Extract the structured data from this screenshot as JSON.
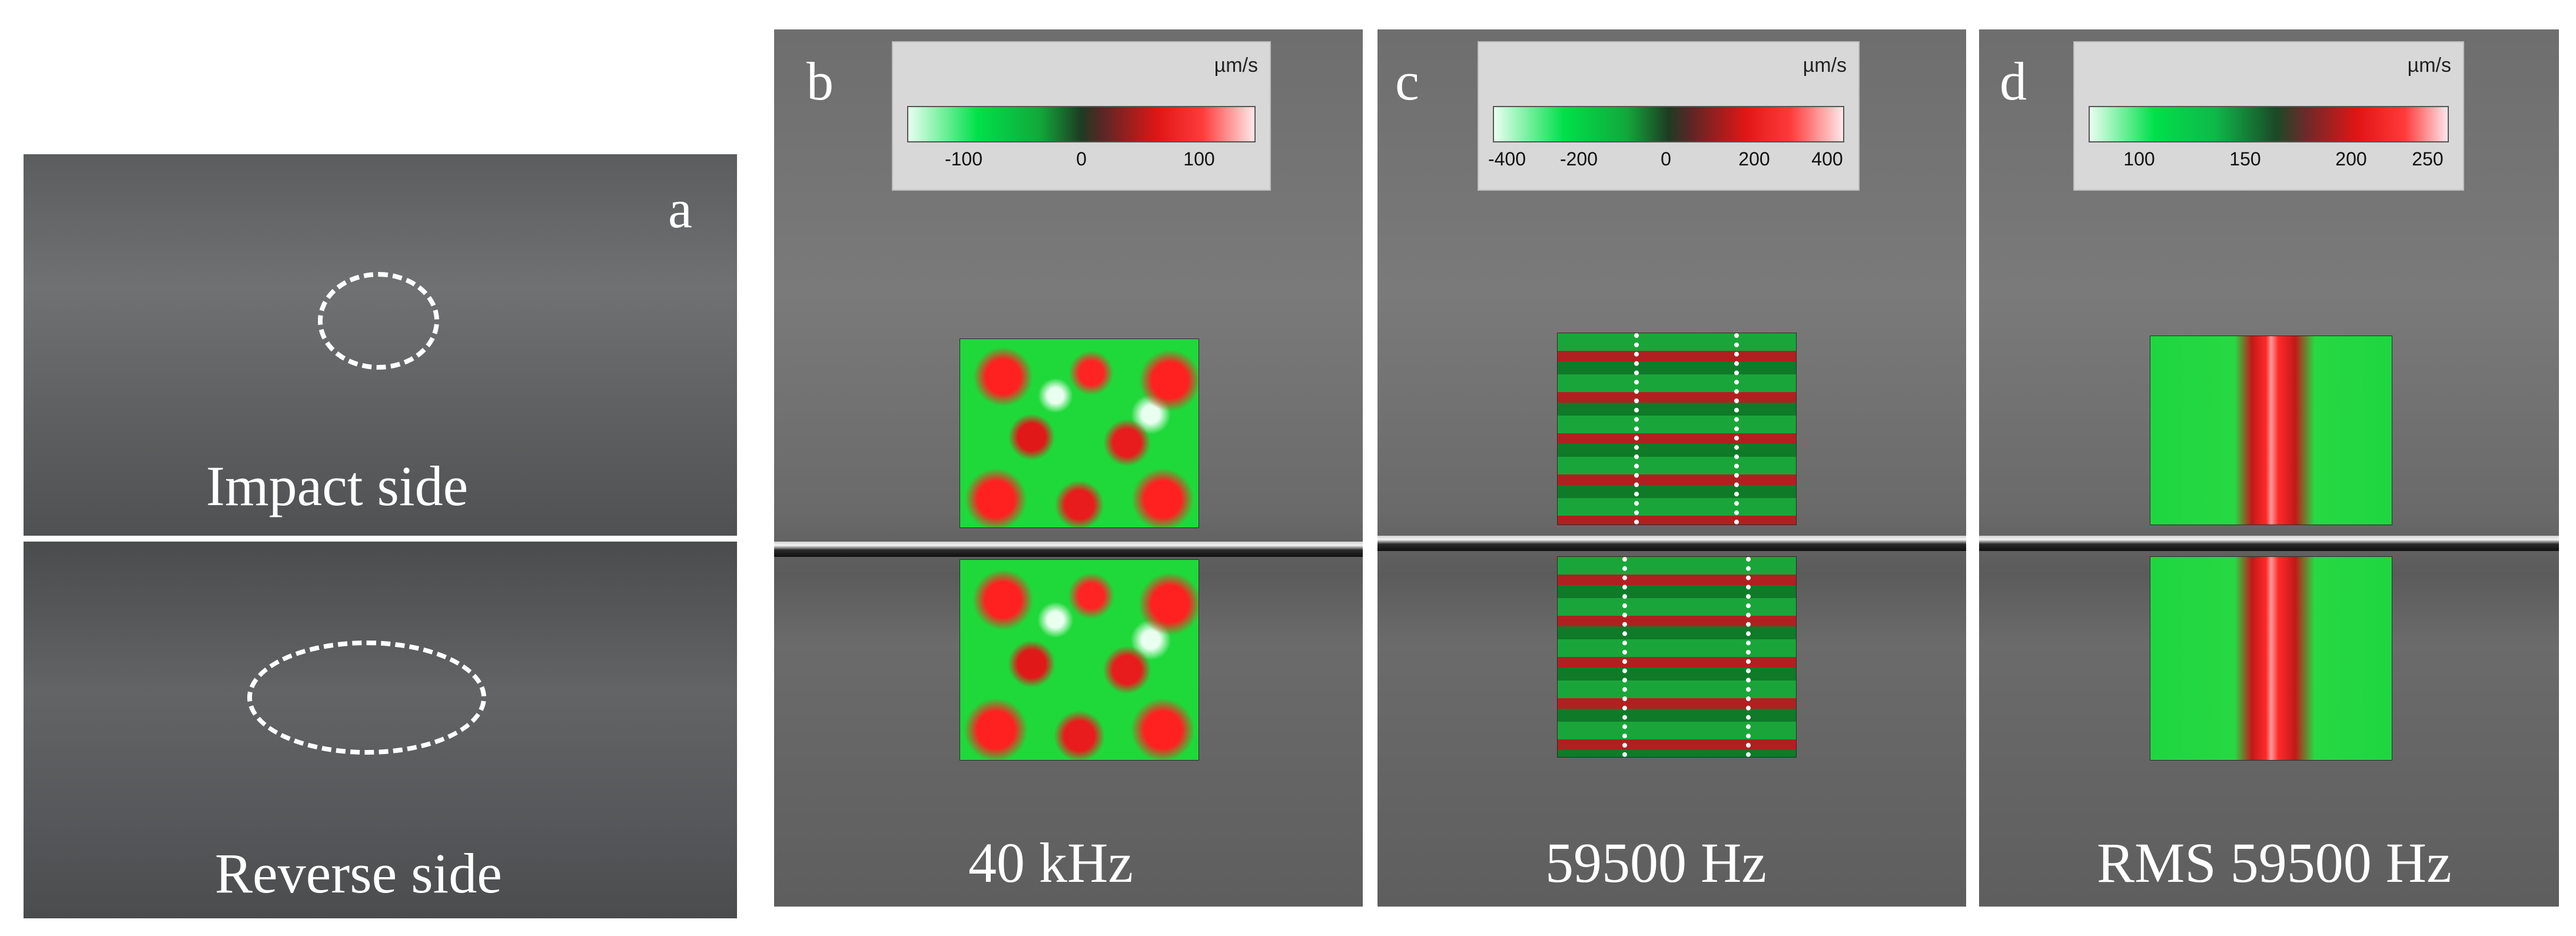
{
  "panel_a": {
    "letter": "a",
    "top_caption": "Impact side",
    "bottom_caption": "Reverse side"
  },
  "panel_b": {
    "letter": "b",
    "caption": "40 kHz",
    "scale_unit": "µm/s",
    "scale_ticks": [
      "-100",
      "0",
      "100"
    ]
  },
  "panel_c": {
    "letter": "c",
    "caption": "59500 Hz",
    "scale_unit": "µm/s",
    "scale_ticks": [
      "-400",
      "-200",
      "0",
      "200",
      "400"
    ]
  },
  "panel_d": {
    "letter": "d",
    "caption": "RMS 59500 Hz",
    "scale_unit": "µm/s",
    "scale_ticks": [
      "100",
      "150",
      "200",
      "250"
    ]
  },
  "colors": {
    "map_green": "#1fd83a",
    "map_red": "#ff2020",
    "background_plate": "#6e6e6e"
  }
}
